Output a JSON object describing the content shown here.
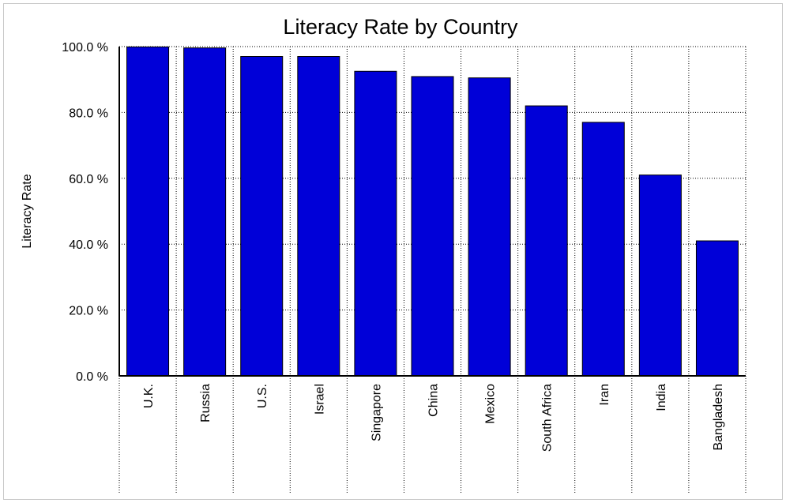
{
  "chart_data": {
    "type": "bar",
    "title": "Literacy Rate by Country",
    "xlabel": "",
    "ylabel": "Literacy Rate",
    "categories": [
      "U.K.",
      "Russia",
      "U.S.",
      "Israel",
      "Singapore",
      "China",
      "Mexico",
      "South Africa",
      "Iran",
      "India",
      "Bangladesh"
    ],
    "values": [
      99.9,
      99.6,
      97.0,
      97.0,
      92.5,
      90.9,
      90.5,
      82.0,
      77.0,
      61.0,
      41.0
    ],
    "ylim": [
      0,
      100
    ],
    "yticks": [
      {
        "value": 0,
        "label": "0.0 %"
      },
      {
        "value": 20,
        "label": "20.0 %"
      },
      {
        "value": 40,
        "label": "40.0 %"
      },
      {
        "value": 60,
        "label": "60.0 %"
      },
      {
        "value": 80,
        "label": "80.0 %"
      },
      {
        "value": 100,
        "label": "100.0 %"
      }
    ],
    "grid": true,
    "legend": "none",
    "bar_color": "#0000d8",
    "bar_edge_color": "#000000"
  }
}
